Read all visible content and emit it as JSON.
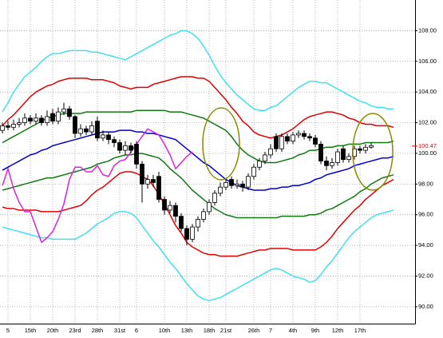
{
  "chart_data": {
    "type": "candlestick",
    "grid": true,
    "ylim": [
      88.9,
      110
    ],
    "yticks": [
      {
        "value": 90,
        "label": "90.00"
      },
      {
        "value": 92,
        "label": "92.00"
      },
      {
        "value": 94,
        "label": "94.00"
      },
      {
        "value": 96,
        "label": "96.00"
      },
      {
        "value": 98,
        "label": "98.00"
      },
      {
        "value": 100,
        "label": "100.00"
      },
      {
        "value": 102,
        "label": "102.00"
      },
      {
        "value": 104,
        "label": "104.00"
      },
      {
        "value": 106,
        "label": "106.00"
      },
      {
        "value": 108,
        "label": "108.00"
      }
    ],
    "last_price": 100.47,
    "last_price_color": "#e00000",
    "categories": [
      null,
      "5",
      null,
      null,
      null,
      "15th",
      null,
      null,
      null,
      "20th",
      null,
      null,
      null,
      "23rd",
      null,
      null,
      null,
      "28th",
      null,
      null,
      null,
      "31st",
      null,
      null,
      "6",
      null,
      null,
      null,
      null,
      "10th",
      null,
      null,
      null,
      "13th",
      null,
      null,
      null,
      "18th",
      null,
      null,
      "21st",
      null,
      null,
      null,
      null,
      "26th",
      null,
      null,
      "7",
      null,
      null,
      null,
      "4th",
      null,
      null,
      null,
      "9th",
      null,
      null,
      null,
      "12th",
      null,
      null,
      null,
      "17th",
      null,
      null,
      null,
      null,
      null,
      null
    ],
    "candles": {
      "up_color": "#ffffff",
      "down_color": "#000000",
      "edge_color": "#000000",
      "open": [
        101.5,
        101.8,
        101.7,
        101.9,
        102.0,
        102.3,
        102.1,
        102.3,
        102.0,
        102.6,
        102.1,
        102.7,
        102.9,
        102.4,
        101.3,
        101.6,
        101.4,
        102.1,
        101.0,
        101.2,
        100.9,
        100.7,
        100.2,
        100.5,
        100.6,
        99.3,
        98.0,
        98.3,
        98.5,
        97.0,
        96.3,
        96.6,
        95.9,
        95.1,
        94.4,
        95.2,
        95.7,
        96.2,
        96.8,
        97.4,
        97.8,
        98.3,
        97.9,
        98.0,
        97.8,
        98.5,
        99.1,
        99.5,
        99.9,
        101.1,
        100.3,
        101.1,
        100.8,
        101.2,
        101.3,
        101.1,
        101.0,
        100.6,
        99.5,
        99.2,
        99.4,
        100.3,
        99.6,
        99.8,
        100.3,
        100.2,
        100.4,
        null,
        null,
        null,
        null
      ],
      "high": [
        102.0,
        102.1,
        102.2,
        102.3,
        102.6,
        102.5,
        102.6,
        102.5,
        102.8,
        102.9,
        103.0,
        103.3,
        103.1,
        102.5,
        101.9,
        101.8,
        102.1,
        102.4,
        101.5,
        101.4,
        101.1,
        100.9,
        100.8,
        100.7,
        100.8,
        99.5,
        98.6,
        98.6,
        98.8,
        97.2,
        96.9,
        96.8,
        96.1,
        95.3,
        95.4,
        95.9,
        96.4,
        97.0,
        97.6,
        98.1,
        98.4,
        98.5,
        98.3,
        98.2,
        98.7,
        99.3,
        99.7,
        100.1,
        100.6,
        101.3,
        101.3,
        101.3,
        101.4,
        101.5,
        101.5,
        101.3,
        101.2,
        100.8,
        99.8,
        99.7,
        100.3,
        100.5,
        100.0,
        100.5,
        100.5,
        100.6,
        100.7,
        null,
        null,
        null,
        null
      ],
      "low": [
        101.3,
        101.5,
        101.5,
        101.7,
        101.8,
        101.9,
        101.9,
        101.8,
        101.8,
        101.9,
        101.9,
        102.5,
        102.2,
        101.0,
        101.1,
        101.2,
        101.2,
        100.8,
        100.8,
        100.6,
        100.4,
        100.0,
        99.9,
        100.0,
        99.0,
        96.8,
        97.7,
        97.8,
        96.8,
        96.0,
        96.1,
        95.5,
        94.9,
        94.0,
        94.2,
        94.9,
        95.5,
        96.0,
        96.6,
        97.2,
        97.6,
        97.7,
        97.7,
        97.5,
        97.6,
        98.3,
        98.9,
        99.3,
        99.7,
        100.1,
        100.1,
        100.6,
        100.6,
        101.0,
        100.9,
        100.8,
        100.4,
        99.3,
        98.9,
        99.0,
        99.2,
        99.4,
        99.4,
        99.6,
        100.0,
        100.0,
        100.3,
        null,
        null,
        null,
        null
      ],
      "close": [
        101.8,
        101.7,
        101.9,
        102.0,
        102.3,
        102.1,
        102.3,
        102.0,
        102.4,
        102.1,
        102.7,
        102.9,
        102.4,
        101.3,
        101.6,
        101.4,
        101.8,
        101.0,
        101.2,
        100.9,
        100.7,
        100.2,
        100.5,
        100.2,
        99.3,
        98.0,
        98.3,
        98.1,
        97.0,
        96.3,
        96.6,
        95.9,
        95.1,
        94.4,
        95.2,
        95.7,
        96.2,
        96.8,
        97.4,
        97.8,
        98.1,
        97.9,
        98.0,
        97.8,
        98.5,
        99.1,
        99.5,
        99.9,
        100.3,
        100.3,
        101.1,
        100.8,
        101.2,
        101.3,
        101.1,
        101.0,
        100.6,
        99.5,
        99.2,
        99.4,
        100.1,
        99.6,
        99.8,
        100.3,
        100.2,
        100.4,
        100.5,
        null,
        null,
        null,
        null
      ]
    },
    "series": [
      {
        "color": "#40e0f0",
        "values": [
          102.7,
          103.3,
          104.0,
          104.5,
          105.0,
          105.3,
          105.6,
          106.0,
          106.3,
          106.5,
          106.5,
          106.6,
          106.7,
          106.7,
          106.7,
          106.7,
          106.6,
          106.6,
          106.5,
          106.4,
          106.3,
          106.2,
          106.1,
          106.3,
          106.5,
          106.7,
          106.9,
          107.1,
          107.3,
          107.5,
          107.7,
          107.8,
          108.0,
          108.0,
          107.8,
          107.5,
          107.0,
          106.4,
          105.7,
          105.1,
          104.6,
          104.2,
          103.8,
          103.5,
          103.2,
          102.9,
          102.8,
          102.8,
          103.0,
          103.1,
          103.4,
          103.7,
          104.0,
          104.3,
          104.5,
          104.7,
          104.7,
          104.6,
          104.6,
          104.4,
          104.2,
          104.0,
          103.8,
          103.6,
          103.4,
          103.3,
          103.1,
          103.0,
          103.0,
          102.9,
          102.9
        ]
      },
      {
        "color": "#40e0f0",
        "values": [
          95.2,
          95.1,
          95.0,
          94.9,
          94.8,
          94.7,
          94.6,
          94.5,
          94.5,
          94.4,
          94.4,
          94.4,
          94.4,
          94.4,
          94.6,
          94.8,
          95.1,
          95.4,
          95.6,
          95.8,
          96.1,
          96.2,
          96.2,
          96.1,
          95.8,
          95.3,
          94.8,
          94.3,
          93.9,
          93.4,
          92.9,
          92.5,
          92.0,
          91.5,
          91.1,
          90.7,
          90.5,
          90.4,
          90.5,
          90.6,
          90.8,
          91.0,
          91.2,
          91.4,
          91.6,
          91.8,
          92.0,
          92.2,
          92.4,
          92.5,
          92.4,
          92.2,
          92.0,
          91.9,
          91.8,
          91.6,
          91.7,
          92.1,
          92.6,
          93.0,
          93.5,
          94.0,
          94.5,
          94.9,
          95.2,
          95.5,
          95.8,
          96.0,
          96.1,
          96.2,
          96.3
        ]
      },
      {
        "color": "#e00000",
        "values": [
          101.8,
          102.2,
          102.5,
          102.9,
          103.3,
          103.7,
          104.0,
          104.2,
          104.4,
          104.5,
          104.7,
          104.8,
          104.9,
          104.9,
          104.9,
          104.9,
          104.8,
          104.8,
          104.8,
          104.7,
          104.6,
          104.4,
          104.3,
          104.2,
          104.3,
          104.3,
          104.3,
          104.5,
          104.6,
          104.7,
          104.8,
          104.9,
          105.0,
          105.0,
          105.0,
          104.9,
          104.9,
          104.7,
          104.3,
          103.9,
          103.5,
          103.0,
          102.6,
          102.1,
          101.8,
          101.4,
          101.2,
          101.1,
          101.0,
          101.1,
          101.2,
          101.4,
          101.6,
          101.9,
          102.2,
          102.4,
          102.5,
          102.6,
          102.7,
          102.7,
          102.6,
          102.5,
          102.3,
          102.2,
          102.0,
          101.9,
          101.9,
          101.8,
          101.8,
          101.8,
          101.7
        ]
      },
      {
        "color": "#e00000",
        "values": [
          96.5,
          96.4,
          96.4,
          96.3,
          96.3,
          96.3,
          96.3,
          96.2,
          96.2,
          96.2,
          96.2,
          96.3,
          96.4,
          96.5,
          96.6,
          96.9,
          97.3,
          97.6,
          97.8,
          98.1,
          98.4,
          98.7,
          98.8,
          98.8,
          98.7,
          98.5,
          98.3,
          97.9,
          97.3,
          96.7,
          96.0,
          95.3,
          94.8,
          94.2,
          93.9,
          93.7,
          93.5,
          93.4,
          93.4,
          93.3,
          93.3,
          93.3,
          93.3,
          93.4,
          93.5,
          93.6,
          93.7,
          93.7,
          93.8,
          93.8,
          93.8,
          93.8,
          93.7,
          93.7,
          93.7,
          93.7,
          93.7,
          93.9,
          94.2,
          94.6,
          95.1,
          95.5,
          95.9,
          96.3,
          96.6,
          97.0,
          97.3,
          97.6,
          97.9,
          98.1,
          98.3
        ]
      },
      {
        "color": "#107a10",
        "values": [
          100.7,
          100.9,
          101.1,
          101.3,
          101.5,
          101.7,
          101.9,
          102.1,
          102.3,
          102.4,
          102.5,
          102.6,
          102.6,
          102.6,
          102.6,
          102.7,
          102.7,
          102.7,
          102.7,
          102.7,
          102.7,
          102.7,
          102.7,
          102.7,
          102.8,
          102.8,
          102.8,
          102.8,
          102.8,
          102.8,
          102.7,
          102.7,
          102.7,
          102.6,
          102.5,
          102.4,
          102.3,
          102.1,
          101.9,
          101.7,
          101.5,
          101.1,
          100.6,
          100.2,
          99.9,
          99.7,
          99.5,
          99.4,
          99.4,
          99.4,
          99.5,
          99.6,
          99.7,
          99.9,
          100.0,
          100.2,
          100.2,
          100.3,
          100.4,
          100.4,
          100.5,
          100.5,
          100.6,
          100.6,
          100.6,
          100.7,
          100.7,
          100.7,
          100.7,
          100.7,
          100.8
        ]
      },
      {
        "color": "#107a10",
        "values": [
          97.6,
          97.7,
          97.8,
          97.9,
          98.0,
          98.1,
          98.2,
          98.3,
          98.4,
          98.4,
          98.5,
          98.6,
          98.7,
          98.8,
          98.9,
          99.0,
          99.1,
          99.3,
          99.4,
          99.5,
          99.7,
          99.8,
          99.9,
          99.9,
          100.0,
          100.0,
          99.9,
          99.8,
          99.7,
          99.4,
          99.0,
          98.7,
          98.4,
          98.0,
          97.6,
          97.3,
          97.0,
          96.7,
          96.4,
          96.2,
          96.0,
          95.9,
          95.8,
          95.8,
          95.8,
          95.8,
          95.8,
          95.8,
          95.8,
          95.8,
          95.9,
          95.9,
          95.9,
          95.9,
          95.9,
          96.0,
          96.0,
          96.1,
          96.3,
          96.4,
          96.6,
          96.8,
          97.0,
          97.2,
          97.5,
          97.7,
          98.0,
          98.2,
          98.4,
          98.5,
          98.6
        ]
      },
      {
        "color": "#0000cc",
        "values": [
          98.9,
          99.1,
          99.3,
          99.5,
          99.7,
          99.9,
          100.0,
          100.2,
          100.3,
          100.5,
          100.6,
          100.7,
          100.8,
          100.9,
          101.0,
          101.1,
          101.2,
          101.3,
          101.4,
          101.4,
          101.4,
          101.5,
          101.5,
          101.5,
          101.4,
          101.4,
          101.3,
          101.3,
          101.2,
          101.1,
          101.0,
          100.9,
          100.6,
          100.3,
          100.0,
          99.7,
          99.4,
          99.2,
          98.9,
          98.6,
          98.3,
          98.1,
          97.9,
          97.8,
          97.7,
          97.6,
          97.6,
          97.6,
          97.7,
          97.7,
          97.8,
          97.8,
          97.9,
          97.9,
          98.0,
          98.1,
          98.3,
          98.4,
          98.6,
          98.7,
          98.8,
          98.9,
          99.0,
          99.2,
          99.3,
          99.4,
          99.5,
          99.6,
          99.7,
          99.7,
          99.8
        ]
      },
      {
        "color": "#e020e0",
        "values": [
          97.9,
          99.0,
          97.7,
          96.8,
          96.2,
          96.2,
          95.2,
          94.2,
          94.5,
          94.9,
          95.7,
          96.7,
          98.3,
          99.1,
          99.1,
          98.8,
          98.8,
          99.2,
          98.6,
          98.5,
          99.2,
          99.5,
          99.6,
          100.1,
          100.6,
          101.1,
          101.6,
          101.4,
          101.2,
          100.6,
          99.9,
          99.0,
          99.4,
          99.8,
          100.1,
          null,
          null,
          null,
          null,
          null,
          null,
          null,
          null,
          null,
          null,
          null,
          null,
          null,
          null,
          null,
          null,
          null,
          null,
          null,
          null,
          null,
          null,
          null,
          null,
          null,
          null,
          null,
          null,
          null,
          null,
          null,
          null,
          null,
          null,
          null,
          null
        ]
      }
    ]
  }
}
